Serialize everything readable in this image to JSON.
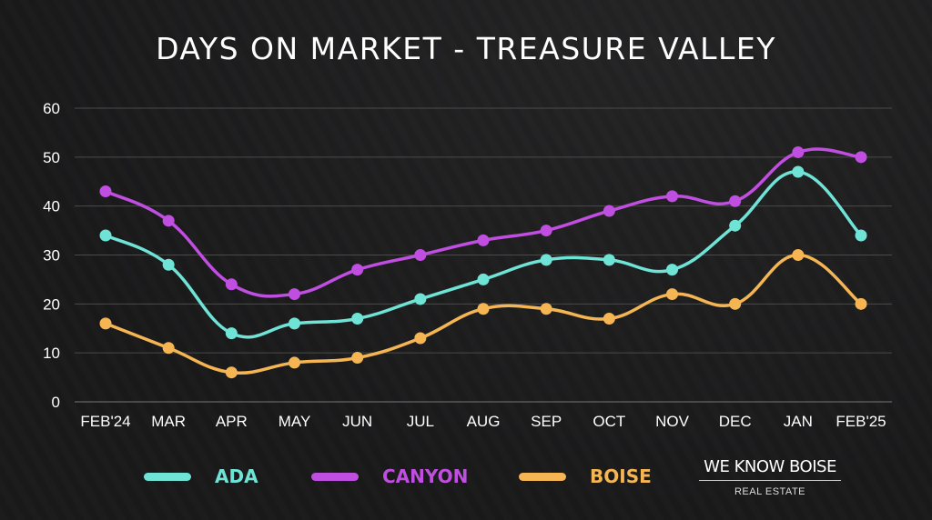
{
  "chart_data": {
    "type": "line",
    "title": "DAYS ON MARKET - TREASURE VALLEY",
    "categories": [
      "FEB'24",
      "MAR",
      "APR",
      "MAY",
      "JUN",
      "JUL",
      "AUG",
      "SEP",
      "OCT",
      "NOV",
      "DEC",
      "JAN",
      "FEB'25"
    ],
    "ylim": [
      0,
      60
    ],
    "yticks": [
      "0",
      "10",
      "20",
      "30",
      "40",
      "50",
      "60"
    ],
    "grid": true,
    "legend_position": "bottom",
    "series": [
      {
        "name": "ADA",
        "color": "#6fe3d6",
        "values": [
          34,
          28,
          14,
          16,
          17,
          21,
          25,
          29,
          29,
          27,
          36,
          47,
          34
        ]
      },
      {
        "name": "CANYON",
        "color": "#c04ee0",
        "values": [
          43,
          37,
          24,
          22,
          27,
          30,
          33,
          35,
          39,
          42,
          41,
          51,
          50
        ]
      },
      {
        "name": "BOISE",
        "color": "#f5b553",
        "values": [
          16,
          11,
          6,
          8,
          9,
          13,
          19,
          19,
          17,
          22,
          20,
          30,
          20
        ]
      }
    ]
  },
  "logo": {
    "line1": "WE KNOW BOISE",
    "line2": "REAL ESTATE"
  }
}
